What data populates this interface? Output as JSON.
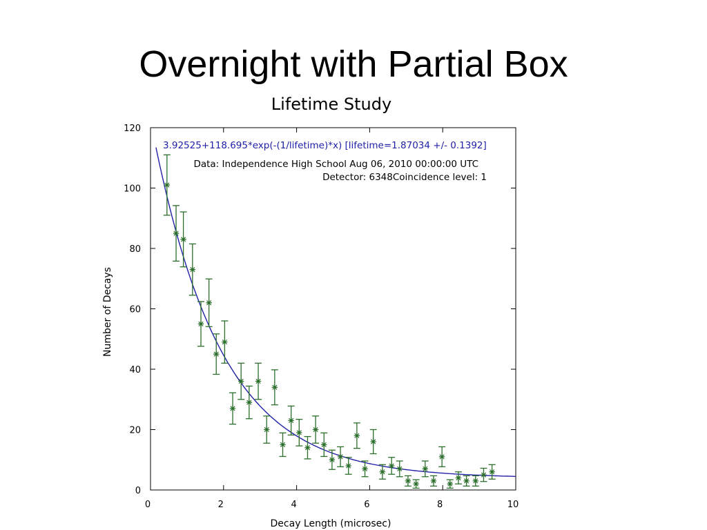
{
  "slide": {
    "title": "Overnight with Partial Box"
  },
  "chart_data": {
    "type": "scatter",
    "title": "Lifetime Study",
    "xlabel": "Decay Length (microsec)",
    "ylabel": "Number of Decays",
    "xlim": [
      0,
      10
    ],
    "ylim": [
      0,
      120
    ],
    "x_ticks": [
      0,
      2,
      4,
      6,
      8,
      10
    ],
    "y_ticks": [
      0,
      20,
      40,
      60,
      80,
      100,
      120
    ],
    "grid": false,
    "annotations": {
      "fit_label": "3.92525+118.695*exp(-(1/lifetime)*x) [lifetime=1.87034 +/- 0.1392]",
      "data_label": "Data: Independence High School Aug 06, 2010 00:00:00 UTC",
      "detector_label": "Detector: 6348Coincidence level: 1"
    },
    "colors": {
      "fit": "#2020a8",
      "points": "#2a6e2a",
      "axis": "#000000"
    },
    "fit": {
      "offset": 3.92525,
      "amplitude": 118.695,
      "lifetime": 1.87034,
      "x_range": [
        0.15,
        10
      ]
    },
    "series": [
      {
        "x": [
          0.45,
          0.7,
          0.9,
          1.15,
          1.38,
          1.6,
          1.8,
          2.03,
          2.25,
          2.48,
          2.7,
          2.95,
          3.18,
          3.4,
          3.62,
          3.85,
          4.07,
          4.3,
          4.52,
          4.75,
          4.97,
          5.2,
          5.42,
          5.65,
          5.87,
          6.1,
          6.35,
          6.6,
          6.82,
          7.05,
          7.27,
          7.52,
          7.75,
          7.98,
          8.2,
          8.43,
          8.65,
          8.9,
          9.12,
          9.35
        ],
        "y": [
          101,
          85,
          83,
          73,
          55,
          62,
          45,
          49,
          27,
          36,
          29,
          36,
          20,
          34,
          15,
          23,
          19,
          14,
          20,
          15,
          10,
          11,
          8,
          18,
          7,
          16,
          6,
          8,
          7,
          3,
          2,
          7,
          3,
          11,
          2,
          4,
          3,
          3,
          5,
          6
        ],
        "err": [
          10,
          9.2,
          9.1,
          8.5,
          7.4,
          7.9,
          6.7,
          7,
          5.2,
          6,
          5.4,
          6,
          4.5,
          5.8,
          3.9,
          4.8,
          4.4,
          3.7,
          4.5,
          3.9,
          3.2,
          3.3,
          2.8,
          4.2,
          2.6,
          4,
          2.4,
          2.8,
          2.6,
          1.7,
          1.4,
          2.6,
          1.7,
          3.3,
          1.4,
          2,
          1.7,
          1.7,
          2.2,
          2.4
        ]
      }
    ]
  }
}
